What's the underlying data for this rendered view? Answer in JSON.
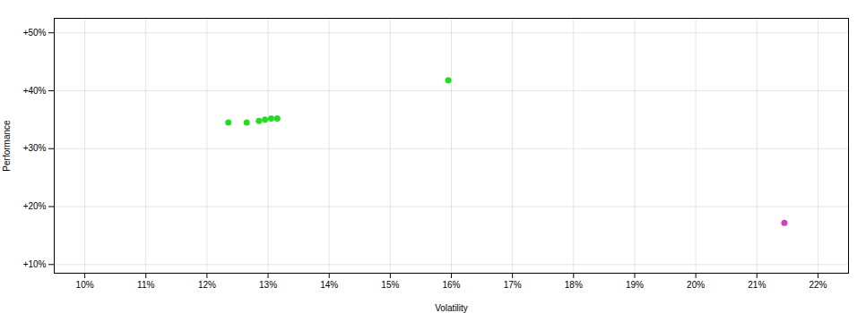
{
  "chart_data": {
    "type": "scatter",
    "xlabel": "Volatility",
    "ylabel": "Performance",
    "xlim": [
      0.095,
      0.225
    ],
    "ylim": [
      0.085,
      0.525
    ],
    "xticks": [
      {
        "value": 0.1,
        "label": "10%"
      },
      {
        "value": 0.11,
        "label": "11%"
      },
      {
        "value": 0.12,
        "label": "12%"
      },
      {
        "value": 0.13,
        "label": "13%"
      },
      {
        "value": 0.14,
        "label": "14%"
      },
      {
        "value": 0.15,
        "label": "15%"
      },
      {
        "value": 0.16,
        "label": "16%"
      },
      {
        "value": 0.17,
        "label": "17%"
      },
      {
        "value": 0.18,
        "label": "18%"
      },
      {
        "value": 0.19,
        "label": "19%"
      },
      {
        "value": 0.2,
        "label": "20%"
      },
      {
        "value": 0.21,
        "label": "21%"
      },
      {
        "value": 0.22,
        "label": "22%"
      }
    ],
    "yticks": [
      {
        "value": 0.1,
        "label": "+10%"
      },
      {
        "value": 0.2,
        "label": "+20%"
      },
      {
        "value": 0.3,
        "label": "+30%"
      },
      {
        "value": 0.4,
        "label": "+40%"
      },
      {
        "value": 0.5,
        "label": "+50%"
      }
    ],
    "grid": true,
    "series": [
      {
        "color": "#22dd22",
        "x": [
          0.1235,
          0.1265,
          0.1285,
          0.1295,
          0.1305,
          0.1315,
          0.1595
        ],
        "values": [
          0.345,
          0.345,
          0.348,
          0.35,
          0.352,
          0.352,
          0.418
        ]
      },
      {
        "color": "#cc44bb",
        "x": [
          0.2145
        ],
        "values": [
          0.172
        ]
      }
    ]
  }
}
